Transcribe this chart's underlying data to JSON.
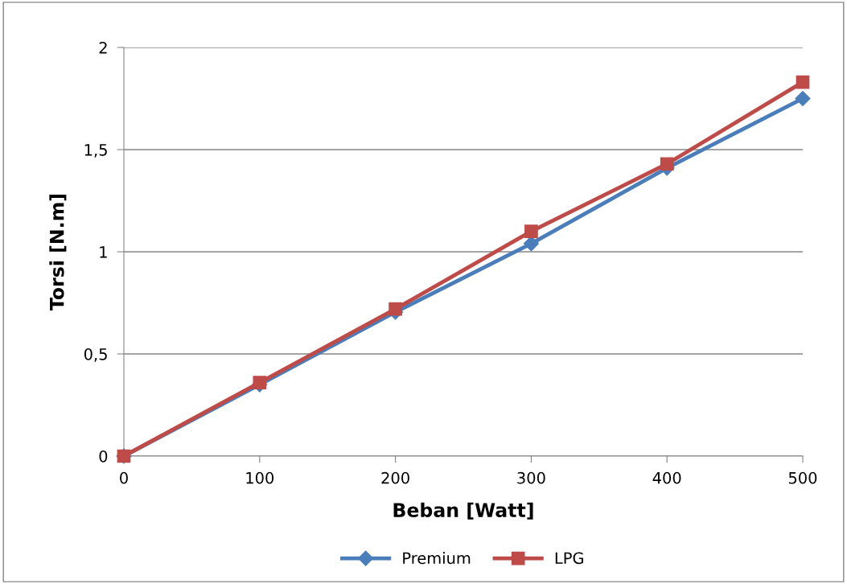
{
  "chart_data": {
    "type": "line",
    "xlabel": "Beban [Watt]",
    "ylabel": "Torsi [N.m]",
    "x": [
      0,
      100,
      200,
      300,
      400,
      500
    ],
    "series": [
      {
        "name": "Premium",
        "color": "#4a7ebb",
        "marker": "diamond",
        "values": [
          0,
          0.35,
          0.705,
          1.04,
          1.41,
          1.75
        ]
      },
      {
        "name": "LPG",
        "color": "#be4b48",
        "marker": "square",
        "values": [
          0,
          0.36,
          0.72,
          1.1,
          1.43,
          1.83
        ]
      }
    ],
    "xlim": [
      0,
      500
    ],
    "xticks": [
      0,
      100,
      200,
      300,
      400,
      500
    ],
    "ylim": [
      0,
      2
    ],
    "yticks": [
      {
        "value": 0,
        "label": "0"
      },
      {
        "value": 0.5,
        "label": "0,5"
      },
      {
        "value": 1,
        "label": "1"
      },
      {
        "value": 1.5,
        "label": "1,5"
      },
      {
        "value": 2,
        "label": "2"
      }
    ],
    "grid": "y",
    "legend": "bottom",
    "line_style": "solid"
  }
}
